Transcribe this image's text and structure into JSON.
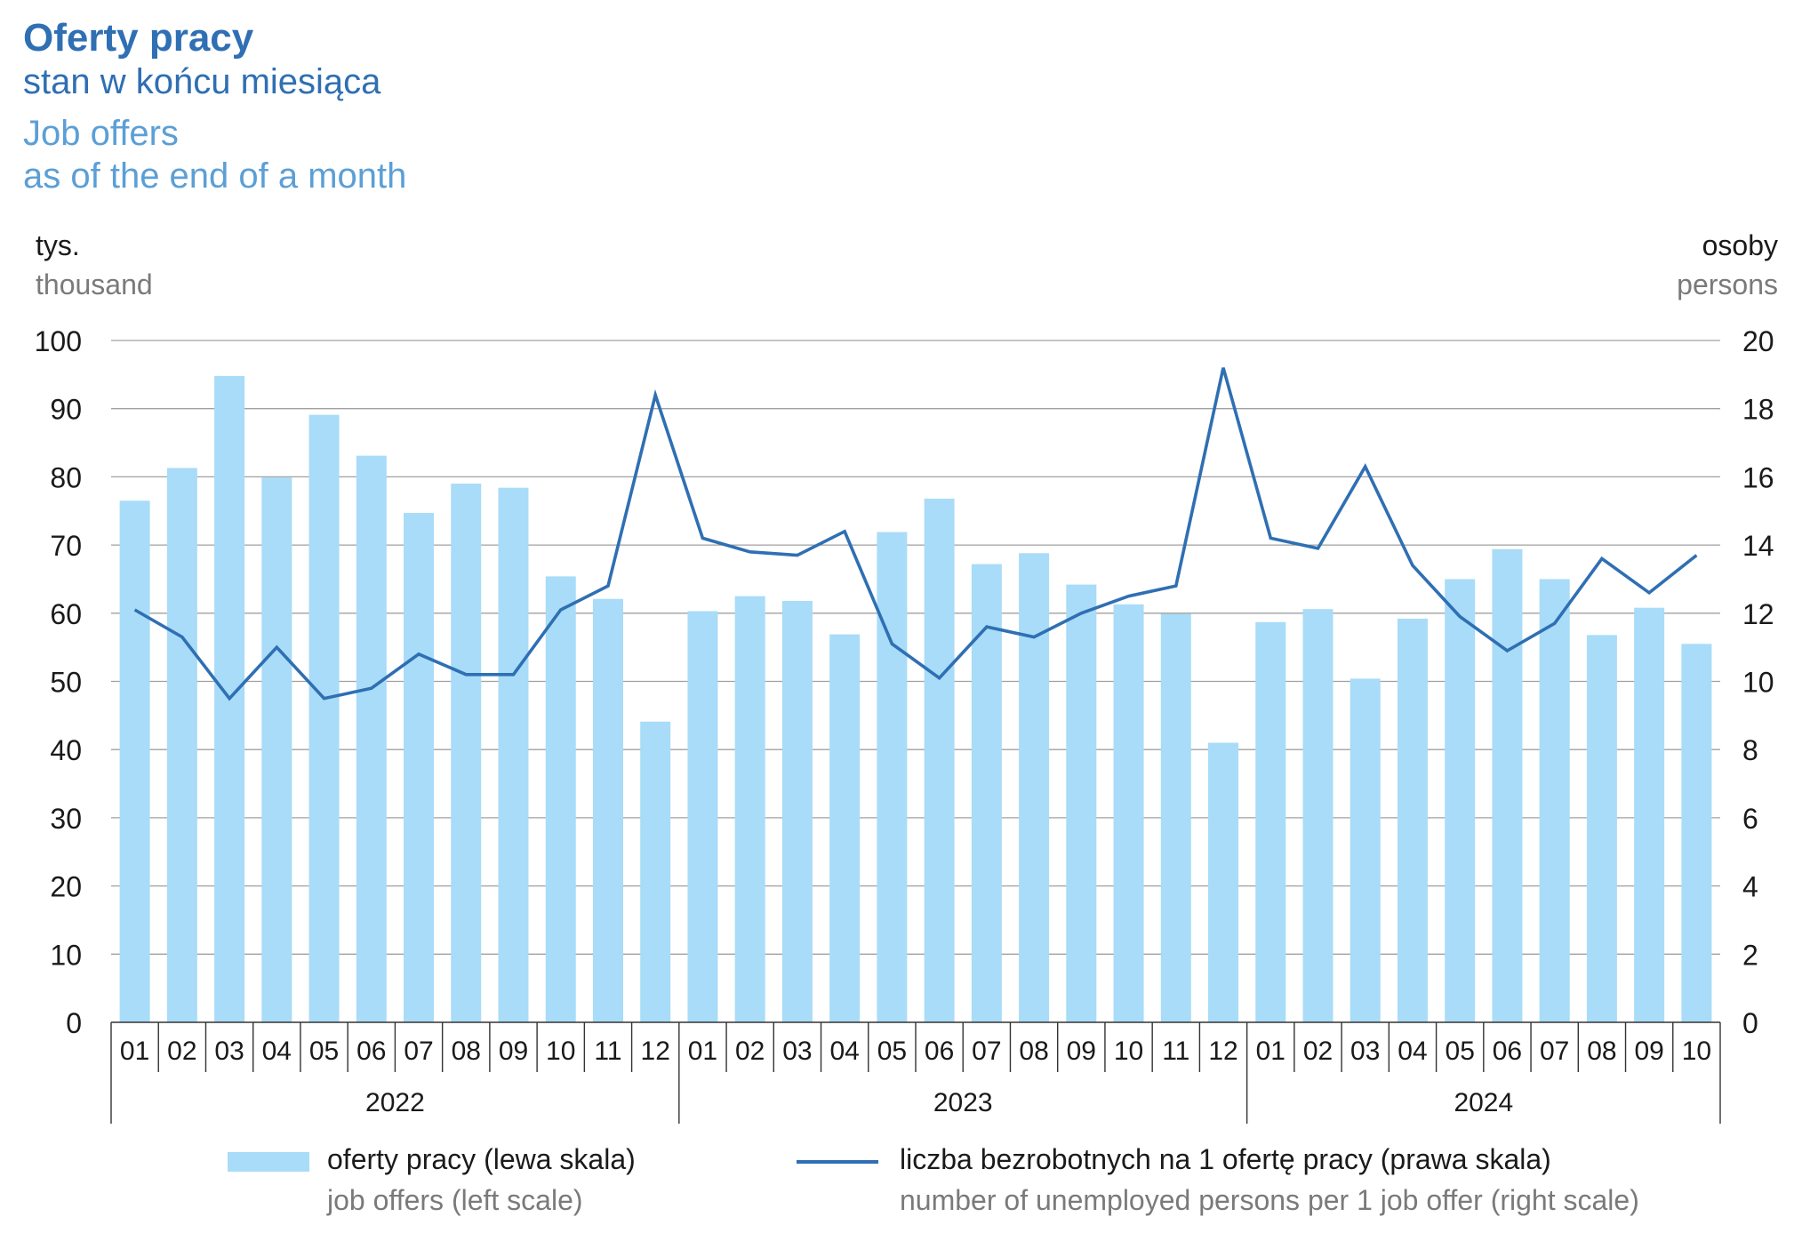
{
  "title_pl": "Oferty pracy",
  "subtitle_pl": "stan w końcu miesiąca",
  "title_en": "Job offers",
  "subtitle_en": "as of the end of a month",
  "left_unit_pl": "tys.",
  "left_unit_en": "thousand",
  "right_unit_pl": "osoby",
  "right_unit_en": "persons",
  "legend": {
    "bar_pl": "oferty pracy (lewa skala)",
    "bar_en": "job offers (left scale)",
    "line_pl": "liczba bezrobotnych na 1 ofertę pracy (prawa skala)",
    "line_en": "number of unemployed persons per 1 job offer (right scale)"
  },
  "colors": {
    "bar": "#a8dcf8",
    "line": "#2f6fb3",
    "grid": "#a0a0a0",
    "axis": "#333333"
  },
  "chart_data": {
    "type": "bar",
    "categories": [
      "01",
      "02",
      "03",
      "04",
      "05",
      "06",
      "07",
      "08",
      "09",
      "10",
      "11",
      "12",
      "01",
      "02",
      "03",
      "04",
      "05",
      "06",
      "07",
      "08",
      "09",
      "10",
      "11",
      "12",
      "01",
      "02",
      "03",
      "04",
      "05",
      "06",
      "07",
      "08",
      "09",
      "10"
    ],
    "groups": [
      {
        "label": "2022",
        "count": 12
      },
      {
        "label": "2023",
        "count": 12
      },
      {
        "label": "2024",
        "count": 10
      }
    ],
    "left_axis": {
      "ylim": [
        0,
        100
      ],
      "ticks": [
        0,
        10,
        20,
        30,
        40,
        50,
        60,
        70,
        80,
        90,
        100
      ]
    },
    "right_axis": {
      "ylim": [
        0,
        20
      ],
      "ticks": [
        0,
        2,
        4,
        6,
        8,
        10,
        12,
        14,
        16,
        18,
        20
      ]
    },
    "grid": true,
    "legend_position": "bottom",
    "series": [
      {
        "name": "oferty pracy (lewa skala)",
        "type": "bar",
        "axis": "left",
        "values": [
          76.5,
          81.3,
          94.8,
          79.9,
          89.1,
          83.1,
          74.7,
          79.0,
          78.4,
          65.4,
          62.1,
          44.1,
          60.3,
          62.5,
          61.8,
          56.9,
          71.9,
          76.8,
          67.2,
          68.8,
          64.2,
          61.3,
          59.9,
          41.0,
          58.7,
          60.6,
          50.4,
          59.2,
          65.0,
          69.4,
          65.0,
          56.8,
          60.8,
          55.5
        ]
      },
      {
        "name": "liczba bezrobotnych na 1 ofertę pracy (prawa skala)",
        "type": "line",
        "axis": "right",
        "values": [
          12.1,
          11.3,
          9.5,
          11.0,
          9.5,
          9.8,
          10.8,
          10.2,
          10.2,
          12.1,
          12.8,
          18.4,
          14.2,
          13.8,
          13.7,
          14.4,
          11.1,
          10.1,
          11.6,
          11.3,
          12.0,
          12.5,
          12.8,
          19.2,
          14.2,
          13.9,
          16.3,
          13.4,
          11.9,
          10.9,
          11.7,
          13.6,
          12.6,
          13.7
        ]
      }
    ]
  }
}
